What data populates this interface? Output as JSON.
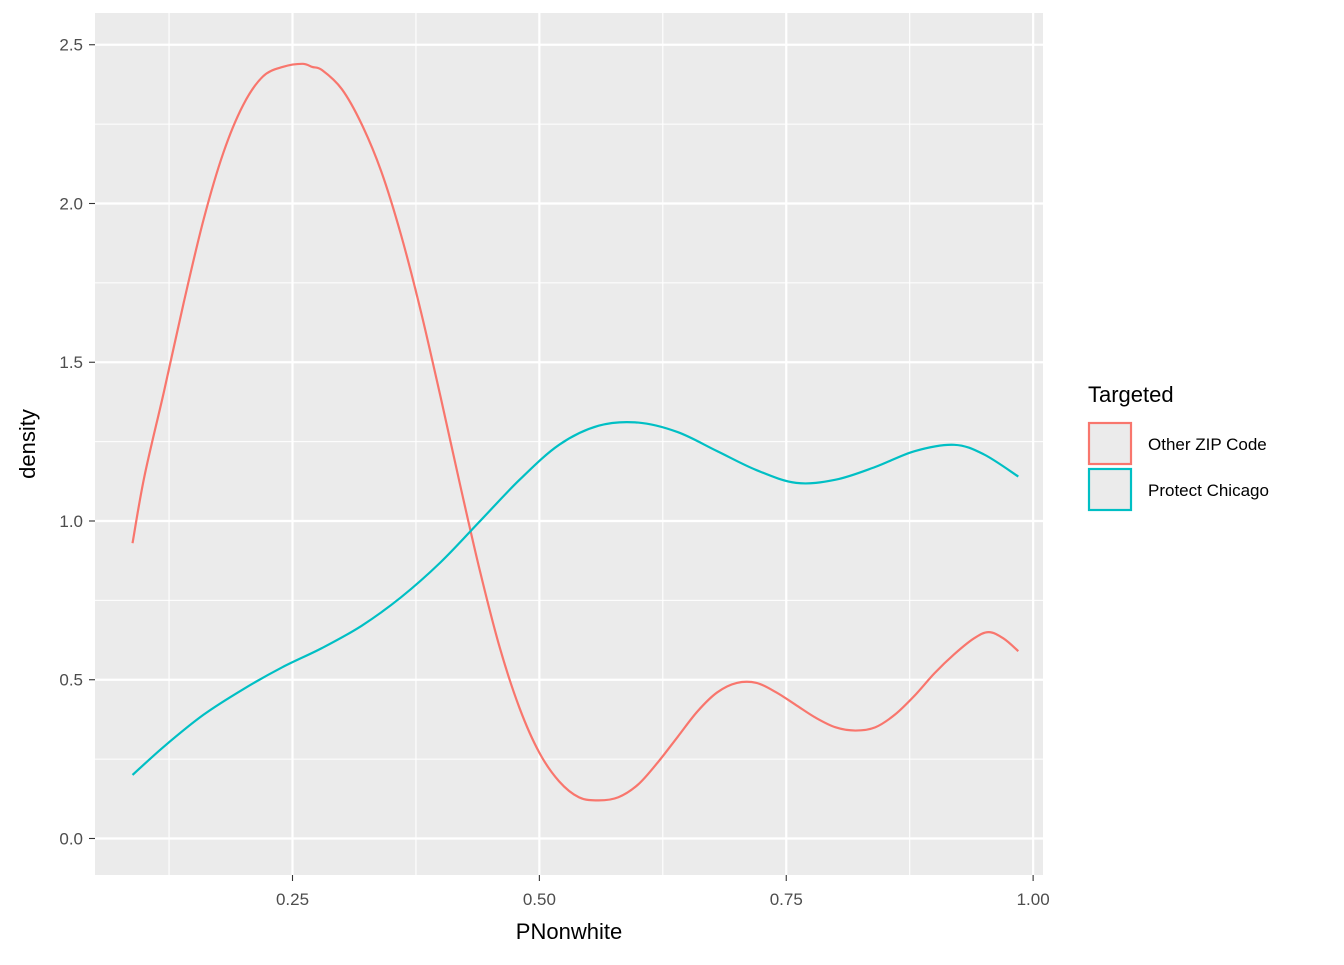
{
  "chart_data": {
    "type": "line",
    "title": "",
    "xlabel": "PNonwhite",
    "ylabel": "density",
    "xlim": [
      0.05,
      1.01
    ],
    "ylim": [
      -0.115,
      2.6
    ],
    "x_ticks": [
      {
        "value": 0.25,
        "label": "0.25"
      },
      {
        "value": 0.5,
        "label": "0.50"
      },
      {
        "value": 0.75,
        "label": "0.75"
      },
      {
        "value": 1.0,
        "label": "1.00"
      }
    ],
    "x_minor_ticks": [
      0.125,
      0.375,
      0.625,
      0.875
    ],
    "y_ticks": [
      {
        "value": 0.0,
        "label": "0.0"
      },
      {
        "value": 0.5,
        "label": "0.5"
      },
      {
        "value": 1.0,
        "label": "1.0"
      },
      {
        "value": 1.5,
        "label": "1.5"
      },
      {
        "value": 2.0,
        "label": "2.0"
      },
      {
        "value": 2.5,
        "label": "2.5"
      }
    ],
    "y_minor_ticks": [
      0.25,
      0.75,
      1.25,
      1.75,
      2.25
    ],
    "grid": true,
    "legend": {
      "title": "Targeted",
      "position": "right"
    },
    "series": [
      {
        "name": "Other ZIP Code",
        "color": "#F8766D",
        "x": [
          0.088,
          0.1,
          0.12,
          0.14,
          0.16,
          0.18,
          0.2,
          0.22,
          0.24,
          0.26,
          0.27,
          0.28,
          0.3,
          0.32,
          0.34,
          0.36,
          0.38,
          0.4,
          0.42,
          0.44,
          0.46,
          0.48,
          0.5,
          0.52,
          0.54,
          0.56,
          0.58,
          0.6,
          0.62,
          0.64,
          0.66,
          0.68,
          0.7,
          0.72,
          0.74,
          0.76,
          0.78,
          0.8,
          0.82,
          0.84,
          0.86,
          0.88,
          0.9,
          0.92,
          0.94,
          0.955,
          0.97,
          0.985
        ],
        "y": [
          0.93,
          1.14,
          1.41,
          1.69,
          1.95,
          2.16,
          2.31,
          2.4,
          2.43,
          2.44,
          2.43,
          2.42,
          2.36,
          2.25,
          2.1,
          1.9,
          1.66,
          1.39,
          1.11,
          0.84,
          0.6,
          0.41,
          0.27,
          0.18,
          0.13,
          0.12,
          0.13,
          0.17,
          0.24,
          0.32,
          0.4,
          0.46,
          0.49,
          0.49,
          0.46,
          0.42,
          0.38,
          0.35,
          0.34,
          0.35,
          0.39,
          0.45,
          0.52,
          0.58,
          0.63,
          0.65,
          0.63,
          0.59
        ]
      },
      {
        "name": "Protect Chicago",
        "color": "#00BFC4",
        "x": [
          0.088,
          0.12,
          0.16,
          0.2,
          0.24,
          0.28,
          0.32,
          0.36,
          0.4,
          0.44,
          0.48,
          0.52,
          0.56,
          0.6,
          0.64,
          0.68,
          0.72,
          0.76,
          0.8,
          0.84,
          0.88,
          0.92,
          0.95,
          0.985
        ],
        "y": [
          0.2,
          0.29,
          0.39,
          0.47,
          0.54,
          0.6,
          0.67,
          0.76,
          0.87,
          1.0,
          1.13,
          1.24,
          1.3,
          1.31,
          1.28,
          1.22,
          1.16,
          1.12,
          1.13,
          1.17,
          1.22,
          1.24,
          1.21,
          1.14
        ]
      }
    ]
  }
}
